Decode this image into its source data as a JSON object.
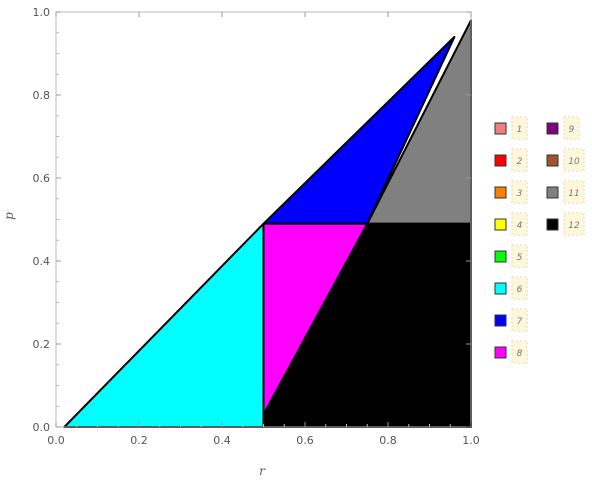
{
  "chart_data": {
    "type": "area",
    "title": "",
    "xlabel": "r",
    "ylabel": "p",
    "xlim": [
      0,
      1
    ],
    "ylim": [
      0,
      1
    ],
    "xticks": [
      0.0,
      0.2,
      0.4,
      0.6,
      0.8,
      1.0
    ],
    "yticks": [
      0.0,
      0.2,
      0.4,
      0.6,
      0.8,
      1.0
    ],
    "xtick_labels": [
      "0.0",
      "0.2",
      "0.4",
      "0.6",
      "0.8",
      "1.0"
    ],
    "ytick_labels": [
      "0.0",
      "0.2",
      "0.4",
      "0.6",
      "0.8",
      "1.0"
    ],
    "grid": false,
    "legend_position": "right",
    "legend": [
      {
        "label": "1",
        "color": "#f08080"
      },
      {
        "label": "2",
        "color": "#ff0000"
      },
      {
        "label": "3",
        "color": "#ff7f00"
      },
      {
        "label": "4",
        "color": "#ffff00"
      },
      {
        "label": "5",
        "color": "#00ff00"
      },
      {
        "label": "6",
        "color": "#00ffff"
      },
      {
        "label": "7",
        "color": "#0000ff"
      },
      {
        "label": "8",
        "color": "#ff00ff"
      },
      {
        "label": "9",
        "color": "#800080"
      },
      {
        "label": "10",
        "color": "#a0522d"
      },
      {
        "label": "11",
        "color": "#808080"
      },
      {
        "label": "12",
        "color": "#000000"
      }
    ],
    "regions": [
      {
        "id": "6",
        "color": "#00ffff",
        "points": [
          [
            0.02,
            0.0
          ],
          [
            0.5,
            0.0
          ],
          [
            0.5,
            0.49
          ]
        ]
      },
      {
        "id": "7",
        "color": "#0000ff",
        "points": [
          [
            0.5,
            0.49
          ],
          [
            0.75,
            0.49
          ],
          [
            0.96,
            0.94
          ]
        ]
      },
      {
        "id": "8",
        "color": "#ff00ff",
        "points": [
          [
            0.5,
            0.49
          ],
          [
            0.75,
            0.49
          ],
          [
            0.5,
            0.03
          ]
        ]
      },
      {
        "id": "11",
        "color": "#808080",
        "points": [
          [
            0.75,
            0.49
          ],
          [
            1.0,
            0.49
          ],
          [
            1.0,
            0.98
          ]
        ]
      },
      {
        "id": "12",
        "color": "#000000",
        "points": [
          [
            0.5,
            0.0
          ],
          [
            1.0,
            0.0
          ],
          [
            1.0,
            0.49
          ],
          [
            0.75,
            0.49
          ],
          [
            0.5,
            0.03
          ]
        ]
      }
    ]
  }
}
